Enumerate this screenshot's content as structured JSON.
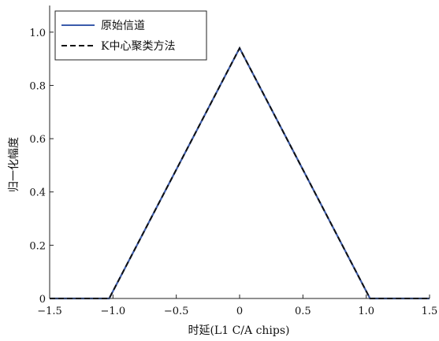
{
  "chart_data": {
    "type": "line",
    "title": "",
    "xlabel": "时延(L1 C/A chips)",
    "ylabel": "归一化幅度",
    "xlim": [
      -1.5,
      1.5
    ],
    "ylim": [
      0,
      1.1
    ],
    "xticks": [
      -1.5,
      -1.0,
      -0.5,
      0,
      0.5,
      1.0,
      1.5
    ],
    "xtick_labels": [
      "−1.5",
      "−1.0",
      "−0.5",
      "0",
      "0.5",
      "1.0",
      "1.5"
    ],
    "yticks": [
      0,
      0.2,
      0.4,
      0.6,
      0.8,
      1.0
    ],
    "ytick_labels": [
      "0",
      "0.2",
      "0.4",
      "0.6",
      "0.8",
      "1.0"
    ],
    "grid": false,
    "legend_position": "top-left",
    "series": [
      {
        "name": "原始信道",
        "color": "#3b5bab",
        "style": "solid",
        "x": [
          -1.5,
          -1.03,
          0,
          1.03,
          1.5
        ],
        "y": [
          0,
          0,
          0.94,
          0,
          0
        ]
      },
      {
        "name": "K中心聚类方法",
        "color": "#111111",
        "style": "dashed",
        "x": [
          -1.5,
          -1.03,
          0,
          1.03,
          1.5
        ],
        "y": [
          0,
          0,
          0.94,
          0,
          0
        ]
      }
    ]
  }
}
